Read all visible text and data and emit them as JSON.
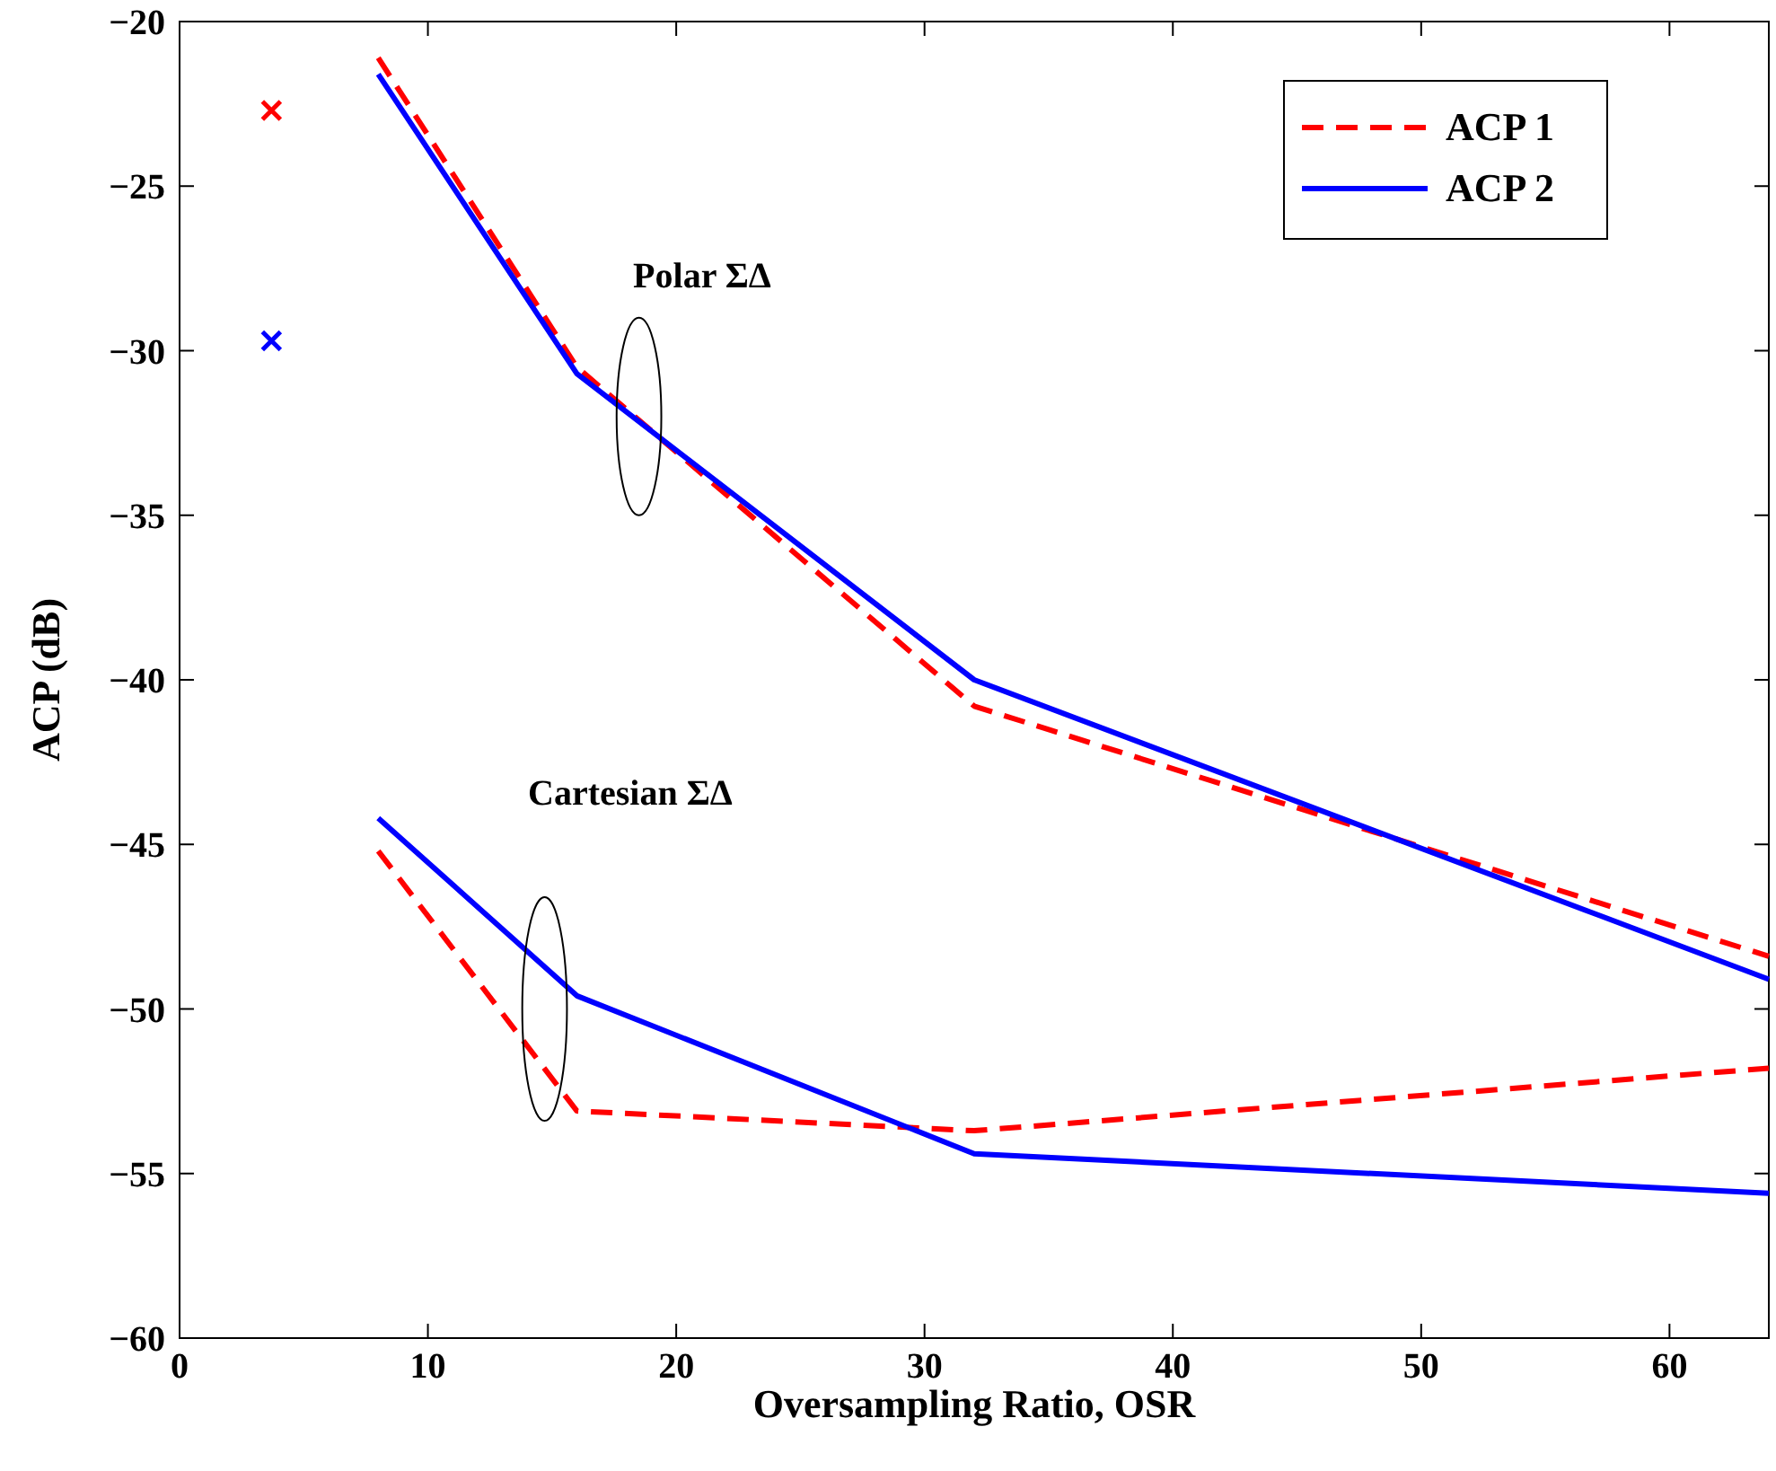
{
  "chart_data": {
    "type": "line",
    "xlabel": "Oversampling Ratio, OSR",
    "ylabel": "ACP (dB)",
    "xlim": [
      0,
      64
    ],
    "ylim": [
      -60,
      -20
    ],
    "xticks": [
      0,
      10,
      20,
      30,
      40,
      50,
      60
    ],
    "yticks": [
      -60,
      -55,
      -50,
      -45,
      -40,
      -35,
      -30,
      -25,
      -20
    ],
    "grid": false,
    "legend": "top right",
    "marker": "none",
    "series": [
      {
        "name": "ACP 1",
        "color": "#ff0000",
        "line_style": "dashed",
        "x": [
          8,
          16,
          32,
          64
        ],
        "values": [
          -21.1,
          -30.5,
          -40.8,
          -48.4
        ]
      },
      {
        "name": "ACP 2",
        "color": "#0000ff",
        "line_style": "solid",
        "x": [
          8,
          16,
          32,
          64
        ],
        "values": [
          -21.6,
          -30.7,
          -40.0,
          -49.1
        ]
      },
      {
        "color": "#ff0000",
        "line_style": "dashed",
        "x": [
          8,
          16,
          32,
          64
        ],
        "values": [
          -45.2,
          -53.1,
          -53.7,
          -51.8
        ]
      },
      {
        "color": "#0000ff",
        "line_style": "solid",
        "x": [
          8,
          16,
          32,
          64
        ],
        "values": [
          -44.2,
          -49.6,
          -54.4,
          -55.6
        ]
      },
      {
        "type": "scatter",
        "marker": "cross",
        "color": "#ff0000",
        "x": [
          3.7
        ],
        "values": [
          -22.7
        ]
      },
      {
        "type": "scatter",
        "marker": "cross",
        "color": "#0000ff",
        "x": [
          3.7
        ],
        "values": [
          -29.7
        ]
      }
    ],
    "annotations": [
      "Polar ΣΔ",
      "Cartesian ΣΔ"
    ]
  }
}
